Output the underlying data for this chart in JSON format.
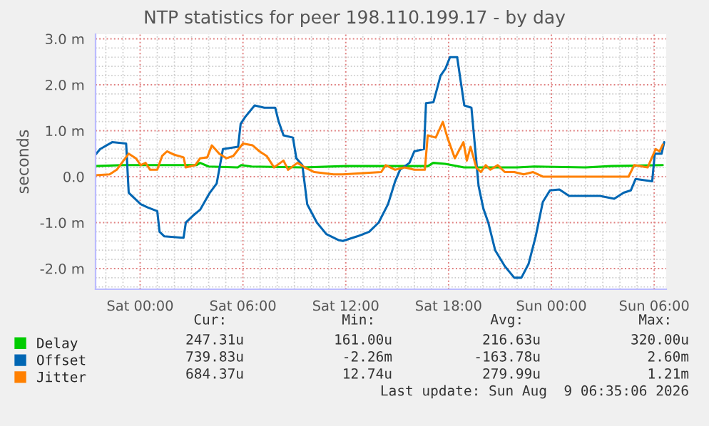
{
  "chart_data": {
    "type": "line",
    "title": "NTP statistics for peer 198.110.199.17 - by day",
    "ylabel": "seconds",
    "xlim": [
      "2026-08-07T21:24",
      "2026-08-09T06:42"
    ],
    "xticks": [
      {
        "value": "2026-08-08T00:00",
        "label": "Sat 00:00"
      },
      {
        "value": "2026-08-08T06:00",
        "label": "Sat 06:00"
      },
      {
        "value": "2026-08-08T12:00",
        "label": "Sat 12:00"
      },
      {
        "value": "2026-08-08T18:00",
        "label": "Sat 18:00"
      },
      {
        "value": "2026-08-09T00:00",
        "label": "Sun 00:00"
      },
      {
        "value": "2026-08-09T06:00",
        "label": "Sun 06:00"
      }
    ],
    "ylim": [
      -2.45,
      3.1
    ],
    "yticks": [
      {
        "value": -2.0,
        "label": "-2.0 m"
      },
      {
        "value": -1.0,
        "label": "-1.0 m"
      },
      {
        "value": 0.0,
        "label": "0.0"
      },
      {
        "value": 1.0,
        "label": "1.0 m"
      },
      {
        "value": 2.0,
        "label": "2.0 m"
      },
      {
        "value": 3.0,
        "label": "3.0 m"
      }
    ],
    "grid": true,
    "legend": "bottom left",
    "series": [
      {
        "name": "Delay",
        "color": "#00cc00",
        "x": [
          "2026-08-07T21:24",
          "2026-08-07T23:00",
          "2026-08-08T00:00",
          "2026-08-08T03:18",
          "2026-08-08T03:30",
          "2026-08-08T04:00",
          "2026-08-08T05:42",
          "2026-08-08T05:54",
          "2026-08-08T06:30",
          "2026-08-08T09:30",
          "2026-08-08T12:00",
          "2026-08-08T16:48",
          "2026-08-08T17:06",
          "2026-08-08T17:48",
          "2026-08-08T18:54",
          "2026-08-08T22:00",
          "2026-08-08T23:00",
          "2026-08-09T02:00",
          "2026-08-09T03:30",
          "2026-08-09T06:30"
        ],
        "values": [
          0.23,
          0.25,
          0.25,
          0.25,
          0.3,
          0.22,
          0.2,
          0.25,
          0.22,
          0.2,
          0.23,
          0.23,
          0.3,
          0.28,
          0.2,
          0.2,
          0.22,
          0.2,
          0.23,
          0.25
        ]
      },
      {
        "name": "Offset",
        "color": "#0066b3",
        "x": [
          "2026-08-07T21:24",
          "2026-08-07T21:40",
          "2026-08-07T22:22",
          "2026-08-07T23:11",
          "2026-08-07T23:20",
          "2026-08-08T00:02",
          "2026-08-08T00:26",
          "2026-08-08T01:00",
          "2026-08-08T01:08",
          "2026-08-08T01:25",
          "2026-08-08T02:32",
          "2026-08-08T02:40",
          "2026-08-08T03:05",
          "2026-08-08T03:30",
          "2026-08-08T04:04",
          "2026-08-08T04:28",
          "2026-08-08T04:50",
          "2026-08-08T05:43",
          "2026-08-08T05:52",
          "2026-08-08T06:08",
          "2026-08-08T06:41",
          "2026-08-08T07:15",
          "2026-08-08T07:53",
          "2026-08-08T08:05",
          "2026-08-08T08:22",
          "2026-08-08T08:55",
          "2026-08-08T09:07",
          "2026-08-08T09:28",
          "2026-08-08T09:45",
          "2026-08-08T10:19",
          "2026-08-08T10:52",
          "2026-08-08T11:34",
          "2026-08-08T11:50",
          "2026-08-08T12:40",
          "2026-08-08T13:22",
          "2026-08-08T13:55",
          "2026-08-08T14:28",
          "2026-08-08T14:53",
          "2026-08-08T15:10",
          "2026-08-08T15:43",
          "2026-08-08T16:00",
          "2026-08-08T16:34",
          "2026-08-08T16:41",
          "2026-08-08T17:07",
          "2026-08-08T17:32",
          "2026-08-08T17:49",
          "2026-08-08T18:05",
          "2026-08-08T18:30",
          "2026-08-08T18:55",
          "2026-08-08T19:20",
          "2026-08-08T19:45",
          "2026-08-08T20:02",
          "2026-08-08T20:19",
          "2026-08-08T20:43",
          "2026-08-08T21:17",
          "2026-08-08T21:50",
          "2026-08-08T22:15",
          "2026-08-08T22:40",
          "2026-08-08T23:05",
          "2026-08-08T23:30",
          "2026-08-08T23:55",
          "2026-08-09T00:28",
          "2026-08-09T01:02",
          "2026-08-09T01:43",
          "2026-08-09T02:50",
          "2026-08-09T03:40",
          "2026-08-09T04:13",
          "2026-08-09T04:38",
          "2026-08-09T04:55",
          "2026-08-09T05:53",
          "2026-08-09T06:02",
          "2026-08-09T06:26",
          "2026-08-09T06:35"
        ],
        "values": [
          0.48,
          0.6,
          0.75,
          0.72,
          -0.35,
          -0.6,
          -0.67,
          -0.75,
          -1.2,
          -1.3,
          -1.33,
          -1.0,
          -0.85,
          -0.72,
          -0.35,
          -0.15,
          0.6,
          0.65,
          1.15,
          1.3,
          1.55,
          1.5,
          1.5,
          1.2,
          0.9,
          0.85,
          0.4,
          0.25,
          -0.6,
          -1.0,
          -1.25,
          -1.38,
          -1.4,
          -1.3,
          -1.2,
          -1.0,
          -0.6,
          -0.1,
          0.15,
          0.3,
          0.55,
          0.6,
          1.6,
          1.62,
          2.2,
          2.35,
          2.6,
          2.6,
          1.55,
          1.5,
          -0.2,
          -0.7,
          -1.0,
          -1.6,
          -1.95,
          -2.2,
          -2.2,
          -1.9,
          -1.3,
          -0.55,
          -0.3,
          -0.28,
          -0.42,
          -0.42,
          -0.42,
          -0.48,
          -0.35,
          -0.3,
          -0.05,
          -0.1,
          0.5,
          0.5,
          0.75
        ]
      },
      {
        "name": "Jitter",
        "color": "#ff8000",
        "x": [
          "2026-08-07T21:24",
          "2026-08-07T22:13",
          "2026-08-07T22:38",
          "2026-08-07T23:20",
          "2026-08-07T23:45",
          "2026-08-08T00:02",
          "2026-08-08T00:19",
          "2026-08-08T00:35",
          "2026-08-08T01:00",
          "2026-08-08T01:17",
          "2026-08-08T01:34",
          "2026-08-08T01:58",
          "2026-08-08T02:32",
          "2026-08-08T02:40",
          "2026-08-08T03:13",
          "2026-08-08T03:30",
          "2026-08-08T03:55",
          "2026-08-08T04:11",
          "2026-08-08T04:37",
          "2026-08-08T05:02",
          "2026-08-08T05:26",
          "2026-08-08T06:00",
          "2026-08-08T06:34",
          "2026-08-08T06:58",
          "2026-08-08T07:23",
          "2026-08-08T07:49",
          "2026-08-08T08:22",
          "2026-08-08T08:38",
          "2026-08-08T09:11",
          "2026-08-08T09:37",
          "2026-08-08T10:10",
          "2026-08-08T11:17",
          "2026-08-08T11:50",
          "2026-08-08T13:13",
          "2026-08-08T14:04",
          "2026-08-08T14:20",
          "2026-08-08T14:53",
          "2026-08-08T15:26",
          "2026-08-08T16:00",
          "2026-08-08T16:37",
          "2026-08-08T16:47",
          "2026-08-08T17:15",
          "2026-08-08T17:40",
          "2026-08-08T17:56",
          "2026-08-08T18:22",
          "2026-08-08T18:52",
          "2026-08-08T19:04",
          "2026-08-08T19:17",
          "2026-08-08T19:37",
          "2026-08-08T19:53",
          "2026-08-08T20:10",
          "2026-08-08T20:26",
          "2026-08-08T20:52",
          "2026-08-08T21:17",
          "2026-08-08T21:50",
          "2026-08-08T22:23",
          "2026-08-08T22:56",
          "2026-08-08T23:30",
          "2026-08-09T00:53",
          "2026-08-09T02:50",
          "2026-08-09T04:30",
          "2026-08-09T04:50",
          "2026-08-09T05:37",
          "2026-08-09T06:05",
          "2026-08-09T06:19",
          "2026-08-09T06:30"
        ],
        "values": [
          0.03,
          0.05,
          0.15,
          0.5,
          0.4,
          0.25,
          0.3,
          0.15,
          0.15,
          0.45,
          0.55,
          0.48,
          0.42,
          0.2,
          0.25,
          0.4,
          0.42,
          0.68,
          0.5,
          0.4,
          0.45,
          0.72,
          0.68,
          0.55,
          0.45,
          0.2,
          0.35,
          0.15,
          0.3,
          0.2,
          0.1,
          0.05,
          0.05,
          0.08,
          0.1,
          0.25,
          0.15,
          0.2,
          0.15,
          0.15,
          0.9,
          0.85,
          1.19,
          0.85,
          0.4,
          0.75,
          0.35,
          0.65,
          0.2,
          0.1,
          0.25,
          0.15,
          0.25,
          0.1,
          0.1,
          0.05,
          0.1,
          0.0,
          0.0,
          0.0,
          0.0,
          0.25,
          0.2,
          0.6,
          0.55,
          0.7
        ]
      }
    ],
    "annotations": [
      "Cur:",
      "Min:",
      "Avg:",
      "Max:",
      "247.31u",
      "161.00u",
      "216.63u",
      "320.00u",
      "739.83u",
      "-2.26m",
      "-163.78u",
      "2.60m",
      "684.37u",
      "12.74u",
      "279.99u",
      "1.21m",
      "Last update: Sun Aug  9 06:35:06 2026"
    ]
  }
}
